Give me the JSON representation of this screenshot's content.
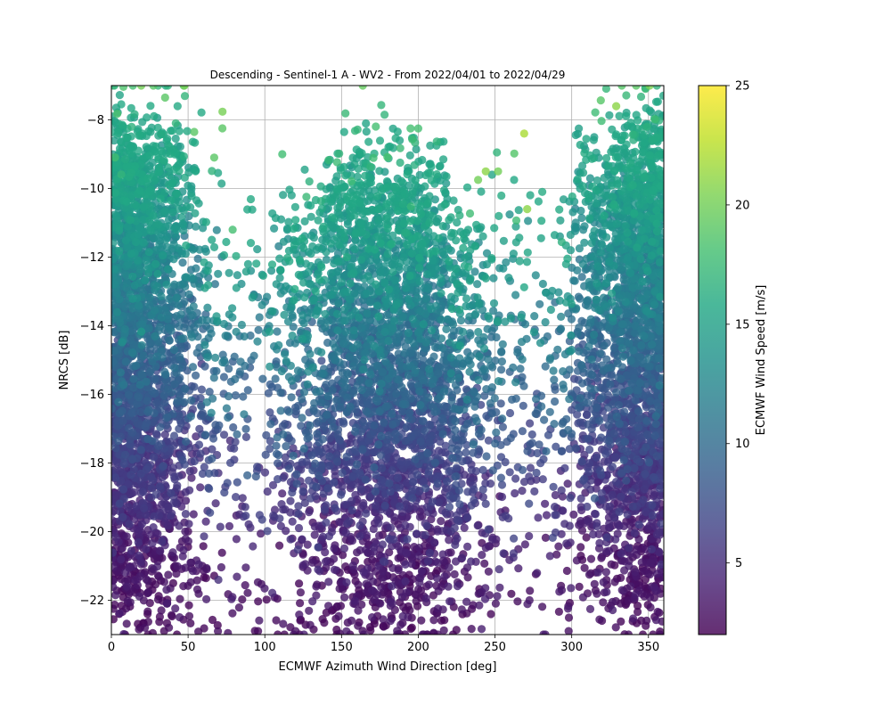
{
  "chart_data": {
    "type": "scatter",
    "title": "Descending - Sentinel-1 A - WV2 - From 2022/04/01 to 2022/04/29",
    "xlabel": "ECMWF Azimuth Wind Direction [deg]",
    "ylabel": "NRCS [dB]",
    "xlim": [
      0,
      360
    ],
    "ylim": [
      -23,
      -7
    ],
    "xticks": [
      0,
      50,
      100,
      150,
      200,
      250,
      300,
      350
    ],
    "yticks": [
      -22,
      -20,
      -18,
      -16,
      -14,
      -12,
      -10,
      -8
    ],
    "grid": true,
    "colorbar": {
      "label": "ECMWF Wind Speed [m/s]",
      "colormap": "viridis",
      "range": [
        2,
        25
      ],
      "ticks": [
        5,
        10,
        15,
        20,
        25
      ]
    },
    "marker_alpha": 0.8,
    "highlighted_points": [
      {
        "x": 2,
        "y": -7.0,
        "speed": 17
      },
      {
        "x": 14,
        "y": -7.0,
        "speed": 18
      },
      {
        "x": 35,
        "y": -7.35,
        "speed": 19
      },
      {
        "x": 42,
        "y": -8.1,
        "speed": 17
      },
      {
        "x": 54,
        "y": -8.35,
        "speed": 19
      },
      {
        "x": 67,
        "y": -9.1,
        "speed": 19
      },
      {
        "x": 79,
        "y": -11.2,
        "speed": 18
      },
      {
        "x": 178,
        "y": -7.85,
        "speed": 17
      },
      {
        "x": 200,
        "y": -8.25,
        "speed": 18
      },
      {
        "x": 239,
        "y": -9.75,
        "speed": 20
      },
      {
        "x": 244,
        "y": -9.5,
        "speed": 21
      },
      {
        "x": 252,
        "y": -9.5,
        "speed": 20
      },
      {
        "x": 269,
        "y": -8.4,
        "speed": 22
      },
      {
        "x": 271,
        "y": -10.6,
        "speed": 21
      },
      {
        "x": 329,
        "y": -7.6,
        "speed": 21
      },
      {
        "x": 342,
        "y": -7.0,
        "speed": 19
      },
      {
        "x": 18,
        "y": -22.85,
        "speed": 3
      },
      {
        "x": 120,
        "y": -22.9,
        "speed": 3
      },
      {
        "x": 210,
        "y": -22.95,
        "speed": 3
      },
      {
        "x": 298,
        "y": -22.9,
        "speed": 3
      }
    ],
    "distribution": {
      "description_clusters": [
        {
          "x_center": 0,
          "x_spread": 28,
          "y_low": -23,
          "y_high": -7
        },
        {
          "x_center": 180,
          "x_spread": 40,
          "y_low": -23,
          "y_high": -8
        },
        {
          "x_center": 360,
          "x_spread": 28,
          "y_low": -23,
          "y_high": -7
        }
      ],
      "approx_point_count": 9000,
      "speed_vs_nrcs": "higher NRCS corresponds to higher wind speed; lower NRCS near -22 dB corresponds to about 2-4 m/s"
    }
  }
}
